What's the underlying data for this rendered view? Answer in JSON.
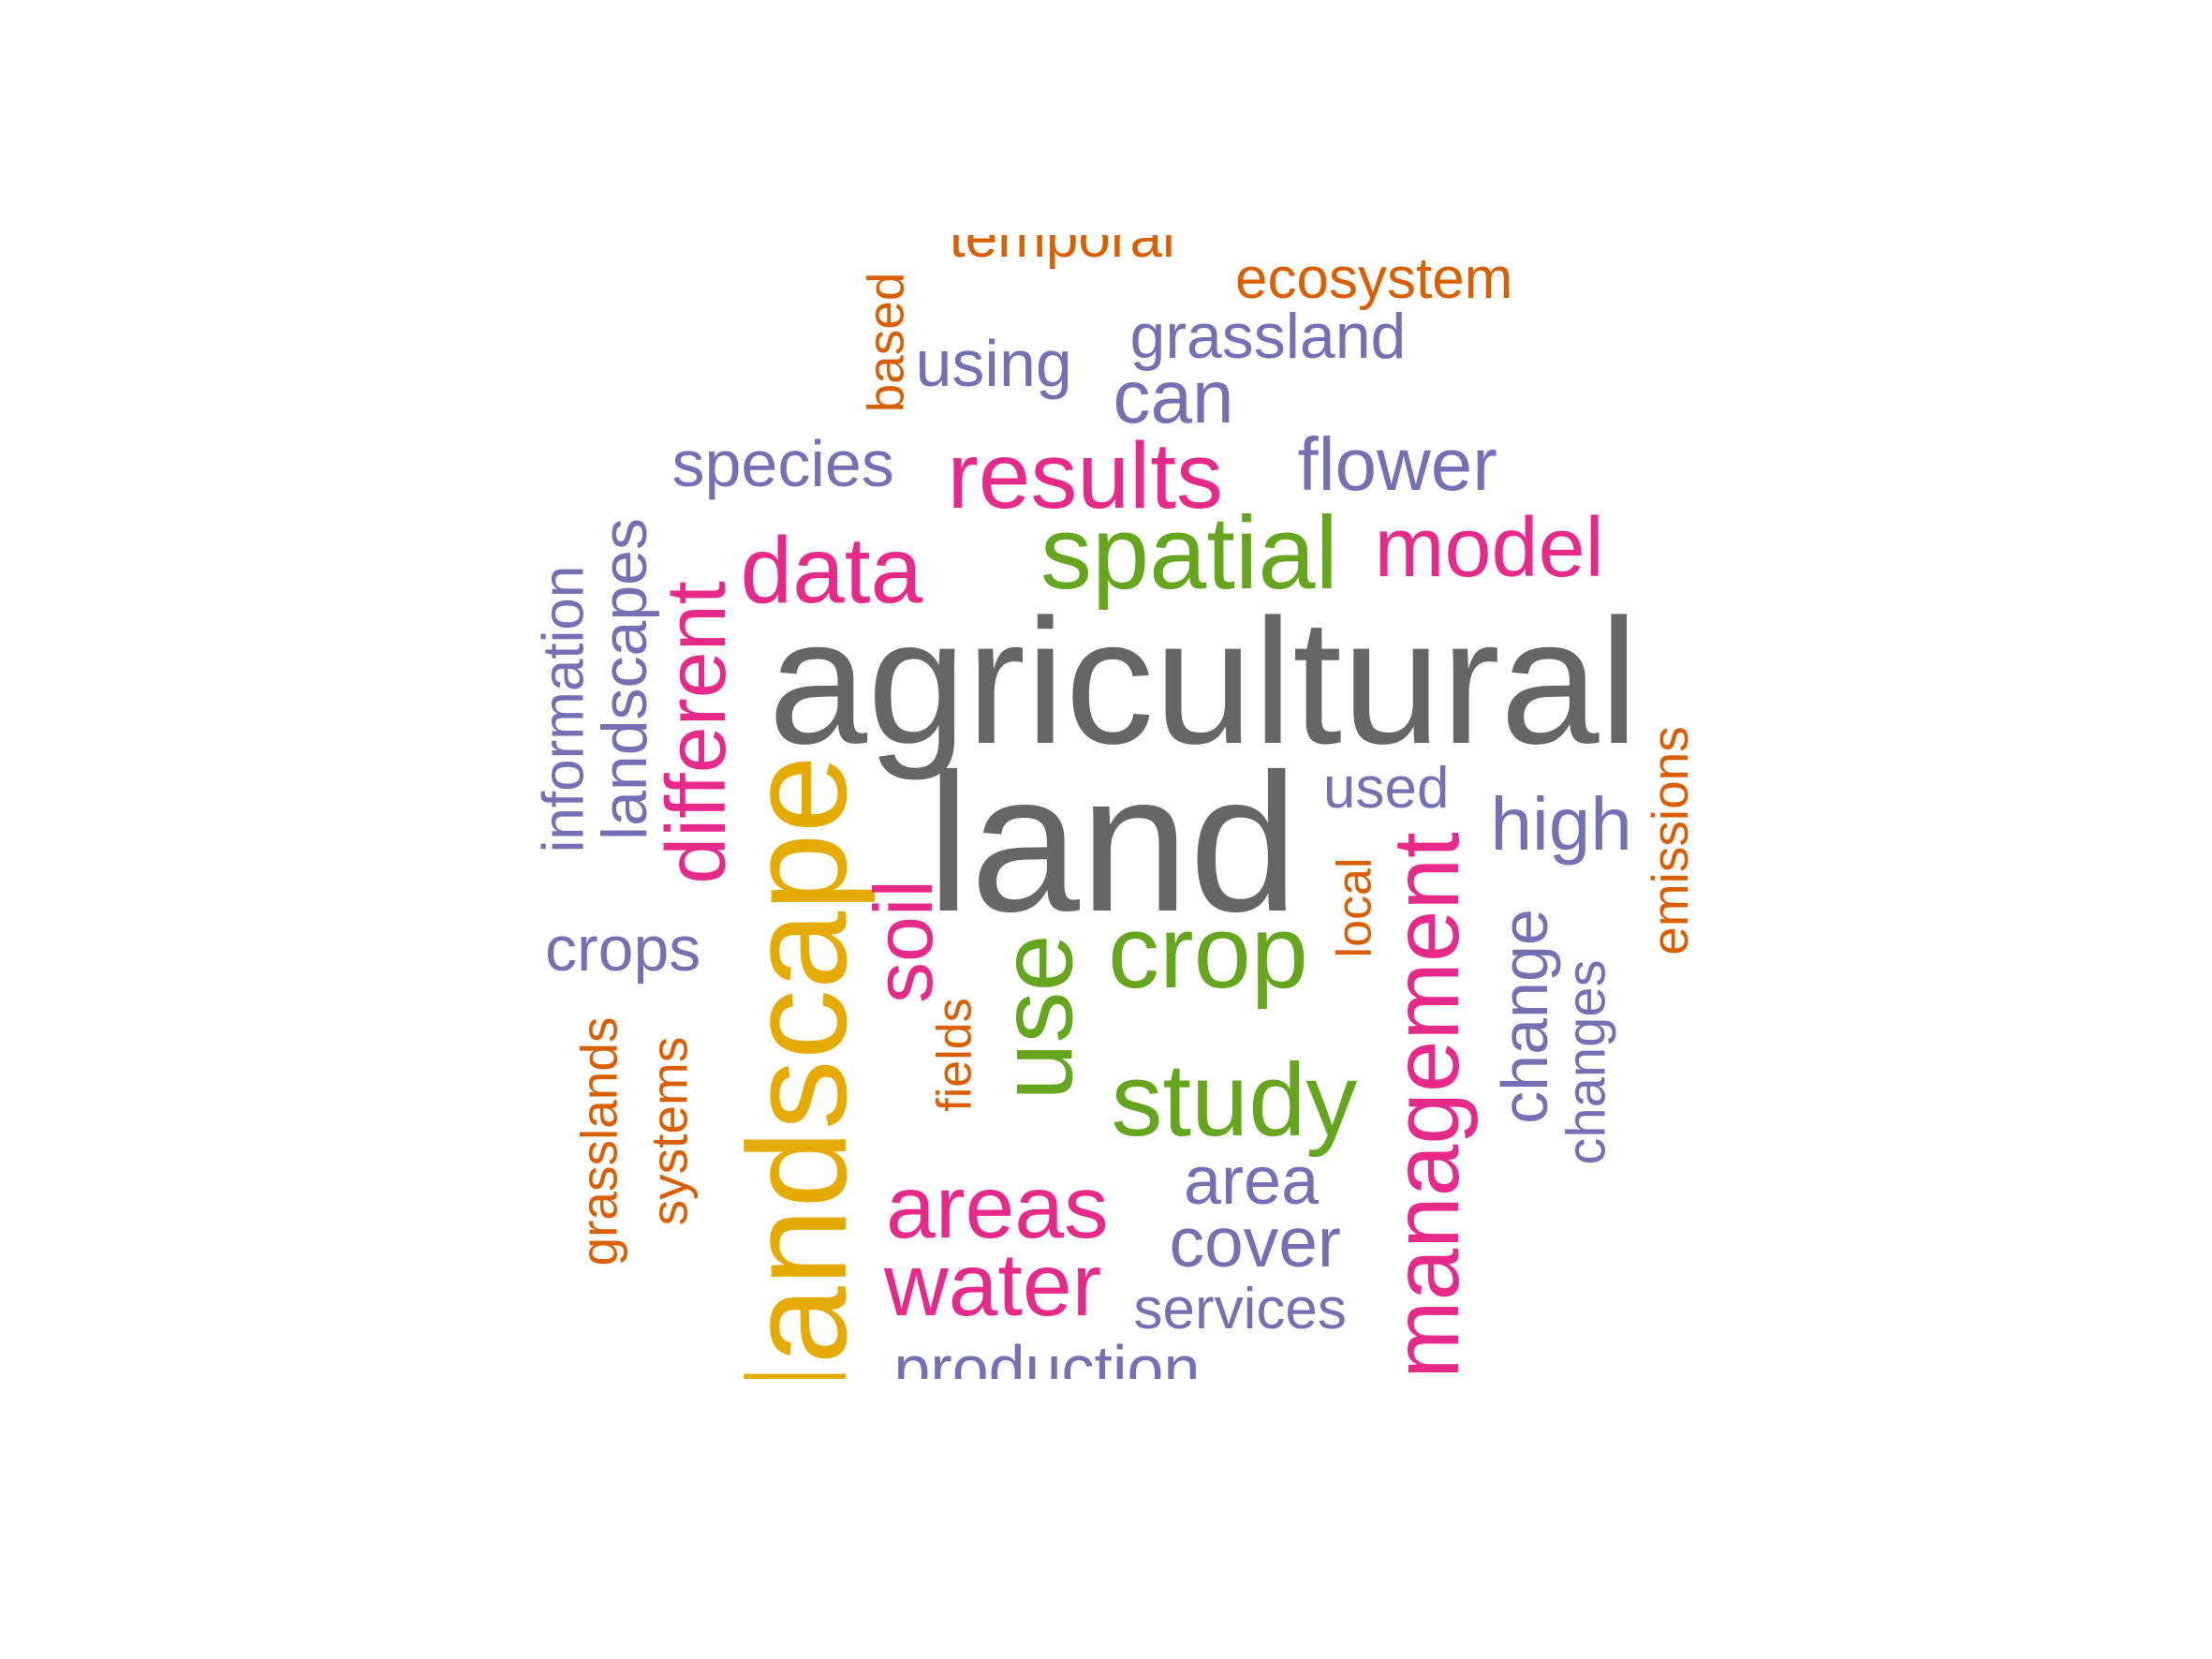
{
  "colors": {
    "gray": "#666666",
    "orange": "#D95F02",
    "purple": "#7570B3",
    "magenta": "#E7298A",
    "green": "#66A61E",
    "yellow": "#E6AB02"
  },
  "words": [
    {
      "text": "agricultural",
      "color": "gray"
    },
    {
      "text": "land",
      "color": "gray"
    },
    {
      "text": "landscape",
      "color": "yellow"
    },
    {
      "text": "use",
      "color": "green"
    },
    {
      "text": "crop",
      "color": "green"
    },
    {
      "text": "study",
      "color": "green"
    },
    {
      "text": "spatial",
      "color": "green"
    },
    {
      "text": "management",
      "color": "magenta"
    },
    {
      "text": "data",
      "color": "magenta"
    },
    {
      "text": "results",
      "color": "magenta"
    },
    {
      "text": "model",
      "color": "magenta"
    },
    {
      "text": "different",
      "color": "magenta"
    },
    {
      "text": "soil",
      "color": "magenta"
    },
    {
      "text": "areas",
      "color": "magenta"
    },
    {
      "text": "water",
      "color": "magenta"
    },
    {
      "text": "flower",
      "color": "purple"
    },
    {
      "text": "species",
      "color": "purple"
    },
    {
      "text": "using",
      "color": "purple"
    },
    {
      "text": "can",
      "color": "purple"
    },
    {
      "text": "grassland",
      "color": "purple"
    },
    {
      "text": "landscapes",
      "color": "purple"
    },
    {
      "text": "information",
      "color": "purple"
    },
    {
      "text": "crops",
      "color": "purple"
    },
    {
      "text": "used",
      "color": "purple"
    },
    {
      "text": "high",
      "color": "purple"
    },
    {
      "text": "change",
      "color": "purple"
    },
    {
      "text": "changes",
      "color": "purple"
    },
    {
      "text": "area",
      "color": "purple"
    },
    {
      "text": "cover",
      "color": "purple"
    },
    {
      "text": "services",
      "color": "purple"
    },
    {
      "text": "production",
      "color": "purple"
    },
    {
      "text": "temporal",
      "color": "orange"
    },
    {
      "text": "ecosystem",
      "color": "orange"
    },
    {
      "text": "based",
      "color": "orange"
    },
    {
      "text": "emissions",
      "color": "orange"
    },
    {
      "text": "local",
      "color": "orange"
    },
    {
      "text": "fields",
      "color": "orange"
    },
    {
      "text": "grasslands",
      "color": "orange"
    },
    {
      "text": "systems",
      "color": "orange"
    }
  ]
}
